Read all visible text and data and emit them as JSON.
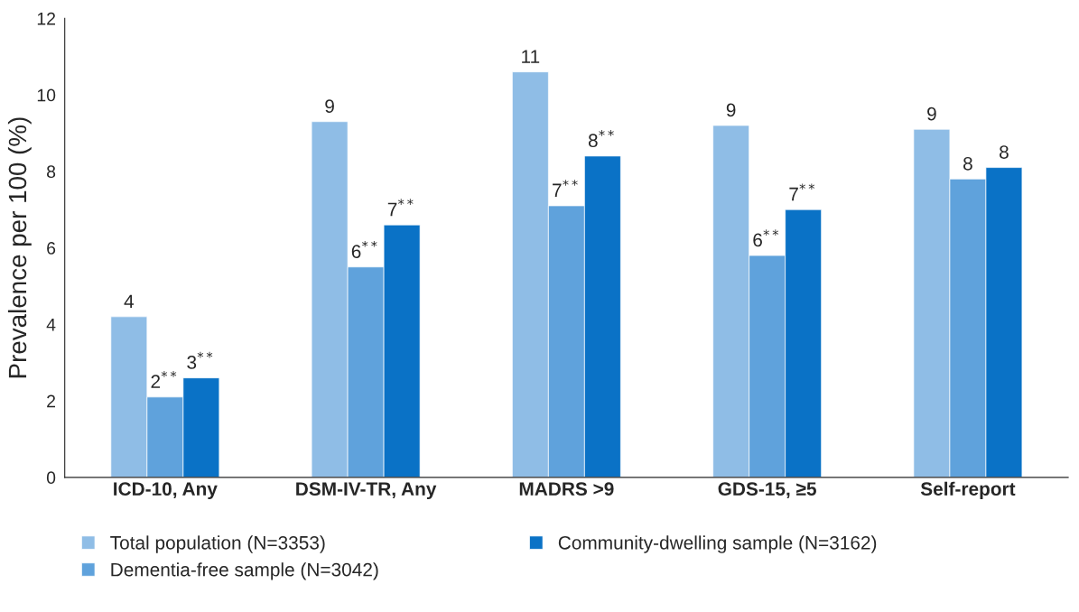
{
  "chart_data": {
    "type": "bar",
    "ylabel": "Prevalence per 100 (%)",
    "categories": [
      "ICD-10, Any",
      "DSM-IV-TR, Any",
      "MADRS >9",
      "GDS-15, ≥5",
      "Self-report"
    ],
    "series": [
      {
        "name": "Total population (N=3353)",
        "color": "#8fbde6",
        "values": [
          4.2,
          9.3,
          10.6,
          9.2,
          9.1
        ],
        "value_labels": [
          "4",
          "9",
          "11",
          "9",
          "9"
        ]
      },
      {
        "name": "Dementia-free sample (N=3042)",
        "color": "#5fa2dc",
        "values": [
          2.1,
          5.5,
          7.1,
          5.8,
          7.8
        ],
        "value_labels": [
          "2$^{**}$",
          "6$^{**}$",
          "7$^{**}$",
          "6$^{**}$",
          "8"
        ]
      },
      {
        "name": "Community-dwelling sample (N=3162)",
        "color": "#0a72c6",
        "values": [
          2.6,
          6.6,
          8.4,
          7.0,
          8.1
        ],
        "value_labels": [
          "3$^{**}$",
          "7$^{**}$",
          "8$^{**}$",
          "7$^{**}$",
          "8"
        ]
      }
    ],
    "ylim": [
      0,
      12
    ],
    "yticks": [
      0,
      2,
      4,
      6,
      8,
      10,
      12
    ],
    "grid": false,
    "legend": "bottom"
  }
}
